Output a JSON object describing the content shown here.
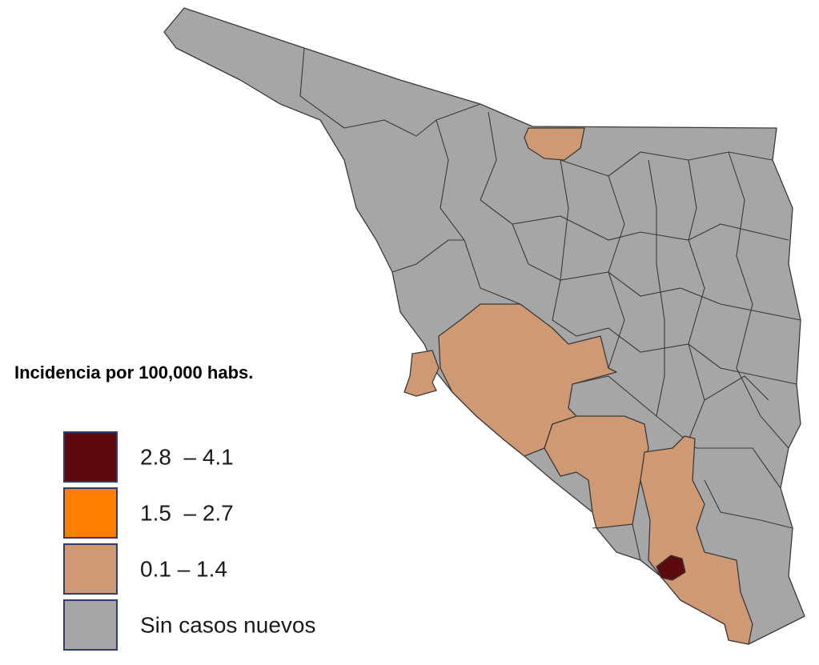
{
  "legend": {
    "title": "Incidencia por 100,000 habs.",
    "items": [
      {
        "label": "2.8  – 4.1",
        "color": "#5c0a0e"
      },
      {
        "label": "1.5  – 2.7",
        "color": "#ff7f00"
      },
      {
        "label": "0.1 – 1.4",
        "color": "#cf9a73"
      },
      {
        "label": "Sin casos nuevos",
        "color": "#a6a6a6"
      }
    ]
  }
}
